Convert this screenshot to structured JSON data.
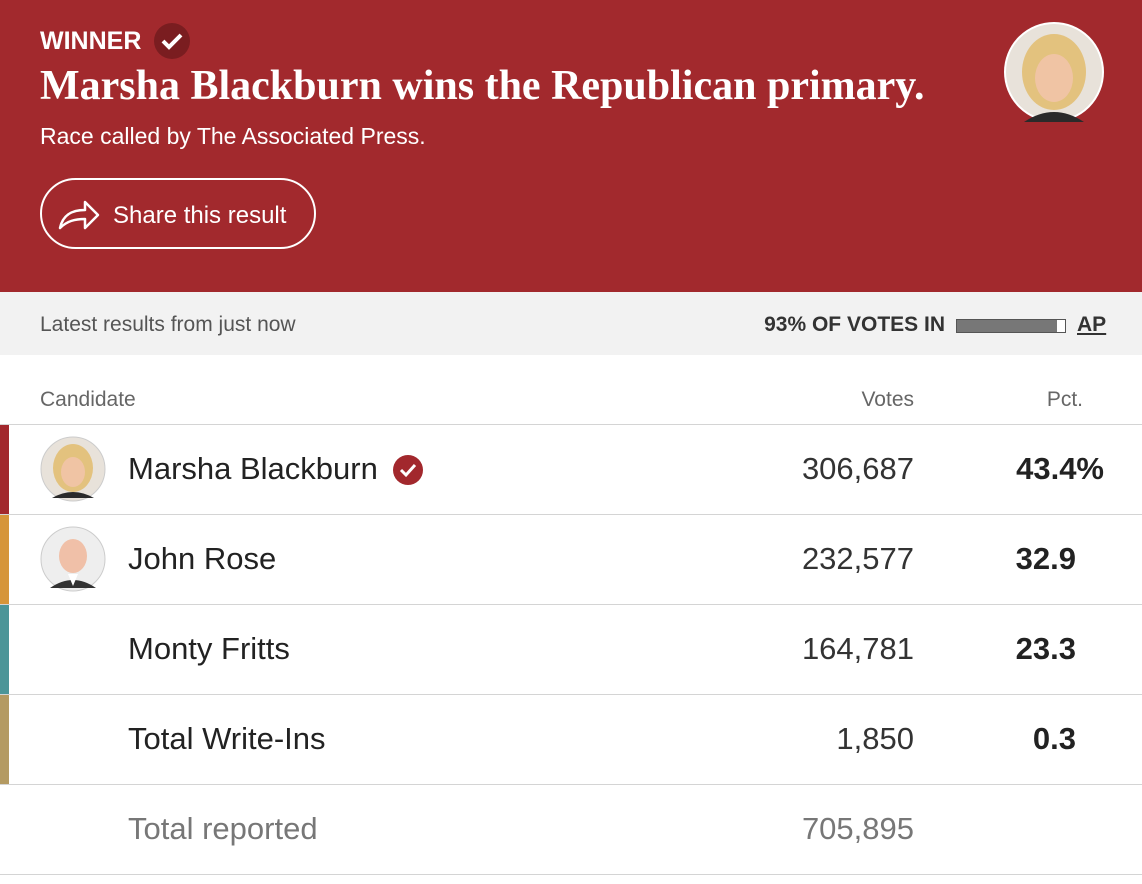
{
  "header": {
    "label": "WINNER",
    "title": "Marsha Blackburn wins the Republican primary.",
    "subtitle": "Race called by The Associated Press.",
    "share": "Share this result"
  },
  "status": {
    "latest": "Latest results from just now",
    "votes_in": {
      "value": 93,
      "label": "93% OF VOTES IN"
    },
    "source": "AP"
  },
  "table": {
    "columns": [
      "Candidate",
      "Votes",
      "Pct."
    ],
    "rows": [
      {
        "name": "Marsha Blackburn",
        "votes": "306,687",
        "pct": "43.4%",
        "color": "#a2282d"
      },
      {
        "name": "John Rose",
        "votes": "232,577",
        "pct": "32.9",
        "color": "#d6953a"
      },
      {
        "name": "Monty Fritts",
        "votes": "164,781",
        "pct": "23.3",
        "color": "#4c9598"
      },
      {
        "name": "Total Write-Ins",
        "votes": "1,850",
        "pct": "0.3",
        "color": "#b49a62"
      }
    ],
    "total": {
      "label": "Total reported",
      "votes": "705,895"
    }
  }
}
